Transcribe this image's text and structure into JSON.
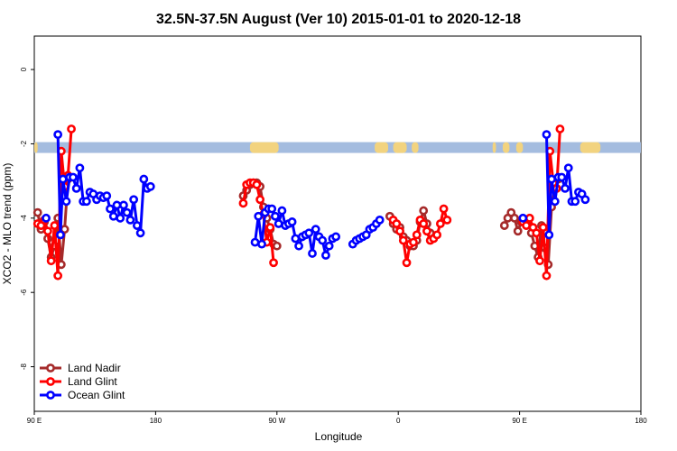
{
  "chart_data": {
    "type": "line",
    "title": "32.5N-37.5N August (Ver 10)   2015-01-01 to 2020-12-18",
    "xlabel": "Longitude",
    "ylabel": "XCO2 - MLO trend (ppm)",
    "xlim": [
      90,
      450
    ],
    "ylim": [
      -9.2,
      0.9
    ],
    "x_ticks": [
      {
        "value": 90,
        "label": "90 E"
      },
      {
        "value": 162,
        "label": "180"
      },
      {
        "value": 234,
        "label": "90 W"
      },
      {
        "value": 306,
        "label": "0"
      },
      {
        "value": 378,
        "label": "90 E"
      },
      {
        "value": 450,
        "label": "180"
      }
    ],
    "y_ticks": [
      {
        "value": 0,
        "label": "0"
      },
      {
        "value": -2,
        "label": "-2"
      },
      {
        "value": -4,
        "label": "-4"
      },
      {
        "value": -6,
        "label": "-6"
      },
      {
        "value": -8,
        "label": "-8"
      }
    ],
    "grid": false,
    "legend_position": "bottom-left",
    "land_band": {
      "y_center": -2.1,
      "ocean_color": "#a4bcdf",
      "land_color": "#f2d37f",
      "land_ranges": [
        [
          90,
          92
        ],
        [
          218,
          235
        ],
        [
          292,
          300
        ],
        [
          303,
          311
        ],
        [
          314,
          318
        ],
        [
          362,
          364
        ],
        [
          368,
          372
        ],
        [
          376,
          380
        ],
        [
          414,
          426
        ]
      ]
    },
    "series": [
      {
        "name": "Land Nadir",
        "color": "#a52a2a",
        "segments": [
          [
            [
              92,
              -3.85
            ],
            [
              94,
              -4.3
            ],
            [
              96,
              -4.1
            ],
            [
              98,
              -4.55
            ],
            [
              100,
              -5.05
            ],
            [
              102,
              -4.75
            ],
            [
              104,
              -4.0
            ],
            [
              106,
              -5.25
            ],
            [
              108,
              -4.3
            ],
            [
              110,
              -2.95
            ]
          ],
          [
            [
              214,
              -3.4
            ],
            [
              216,
              -3.25
            ],
            [
              218,
              -3.1
            ],
            [
              220,
              -3.05
            ],
            [
              222,
              -3.05
            ],
            [
              224,
              -3.15
            ],
            [
              226,
              -3.7
            ],
            [
              228,
              -4.0
            ],
            [
              230,
              -4.3
            ],
            [
              232,
              -4.7
            ],
            [
              234,
              -4.75
            ]
          ],
          [
            [
              301,
              -3.95
            ],
            [
              303,
              -4.15
            ],
            [
              305,
              -4.3
            ],
            [
              307,
              -4.25
            ],
            [
              309,
              -4.5
            ],
            [
              311,
              -4.6
            ],
            [
              313,
              -4.75
            ],
            [
              315,
              -4.75
            ],
            [
              317,
              -4.6
            ],
            [
              319,
              -4.1
            ],
            [
              321,
              -3.8
            ],
            [
              323,
              -4.15
            ],
            [
              325,
              -4.4
            ]
          ],
          [
            [
              369,
              -4.2
            ],
            [
              371,
              -4.0
            ],
            [
              373,
              -3.85
            ],
            [
              375,
              -4.0
            ],
            [
              377,
              -4.35
            ],
            [
              379,
              -4.1
            ],
            [
              381,
              -4.05
            ],
            [
              383,
              -4.05
            ],
            [
              385,
              -4.4
            ],
            [
              387,
              -4.75
            ],
            [
              389,
              -5.05
            ],
            [
              391,
              -4.2
            ],
            [
              393,
              -4.8
            ],
            [
              395,
              -5.25
            ],
            [
              397,
              -3.7
            ],
            [
              399,
              -3.2
            ],
            [
              401,
              -2.95
            ]
          ]
        ]
      },
      {
        "name": "Land Glint",
        "color": "#ff0000",
        "segments": [
          [
            [
              92,
              -4.15
            ],
            [
              94,
              -4.2
            ],
            [
              96,
              -4.05
            ],
            [
              98,
              -4.35
            ],
            [
              100,
              -5.15
            ],
            [
              102,
              -4.2
            ],
            [
              104,
              -5.55
            ],
            [
              106,
              -2.2
            ],
            [
              108,
              -3.15
            ],
            [
              110,
              -2.85
            ],
            [
              112,
              -1.6
            ]
          ],
          [
            [
              214,
              -3.6
            ],
            [
              216,
              -3.1
            ],
            [
              218,
              -3.05
            ],
            [
              220,
              -3.05
            ],
            [
              222,
              -3.1
            ],
            [
              224,
              -3.5
            ],
            [
              226,
              -3.9
            ],
            [
              228,
              -4.65
            ],
            [
              230,
              -4.25
            ],
            [
              232,
              -5.2
            ]
          ],
          [
            [
              303,
              -4.05
            ],
            [
              305,
              -4.15
            ],
            [
              307,
              -4.35
            ],
            [
              309,
              -4.6
            ],
            [
              311,
              -5.2
            ],
            [
              313,
              -4.7
            ],
            [
              315,
              -4.65
            ],
            [
              317,
              -4.45
            ],
            [
              319,
              -4.05
            ],
            [
              321,
              -4.15
            ],
            [
              323,
              -4.35
            ],
            [
              325,
              -4.6
            ],
            [
              327,
              -4.55
            ],
            [
              329,
              -4.45
            ],
            [
              331,
              -4.15
            ],
            [
              333,
              -3.75
            ],
            [
              335,
              -4.05
            ]
          ],
          [
            [
              380,
              -4.1
            ],
            [
              382,
              -4.2
            ],
            [
              384,
              -4.0
            ],
            [
              386,
              -4.25
            ],
            [
              388,
              -4.4
            ],
            [
              390,
              -5.15
            ],
            [
              392,
              -4.25
            ],
            [
              394,
              -5.55
            ],
            [
              396,
              -2.2
            ],
            [
              398,
              -3.05
            ],
            [
              400,
              -3.2
            ],
            [
              402,
              -1.6
            ]
          ]
        ]
      },
      {
        "name": "Ocean Glint",
        "color": "#0000ff",
        "segments": [
          [
            [
              97,
              -4.0
            ]
          ],
          [
            [
              104,
              -1.75
            ],
            [
              105.5,
              -4.45
            ],
            [
              107,
              -2.95
            ],
            [
              109,
              -3.55
            ],
            [
              111,
              -2.9
            ],
            [
              113,
              -2.9
            ],
            [
              115,
              -3.2
            ],
            [
              117,
              -2.65
            ],
            [
              119,
              -3.55
            ],
            [
              121,
              -3.55
            ],
            [
              123,
              -3.3
            ],
            [
              125,
              -3.35
            ],
            [
              127,
              -3.5
            ],
            [
              129,
              -3.4
            ],
            [
              131,
              -3.45
            ],
            [
              133,
              -3.4
            ],
            [
              135,
              -3.75
            ],
            [
              137,
              -3.95
            ],
            [
              139,
              -3.65
            ],
            [
              141,
              -4.0
            ],
            [
              143,
              -3.65
            ],
            [
              145,
              -3.85
            ],
            [
              147,
              -4.05
            ],
            [
              149,
              -3.5
            ],
            [
              151,
              -4.2
            ],
            [
              153,
              -4.4
            ],
            [
              155,
              -2.95
            ],
            [
              157,
              -3.2
            ],
            [
              159,
              -3.15
            ]
          ],
          [
            [
              221,
              -4.65
            ],
            [
              223,
              -3.95
            ],
            [
              225,
              -4.7
            ],
            [
              227,
              -3.85
            ],
            [
              229,
              -3.75
            ],
            [
              231,
              -3.75
            ],
            [
              233,
              -3.95
            ],
            [
              235,
              -4.15
            ],
            [
              237,
              -3.8
            ],
            [
              239,
              -4.2
            ],
            [
              241,
              -4.15
            ],
            [
              243,
              -4.1
            ],
            [
              245,
              -4.55
            ],
            [
              247,
              -4.75
            ],
            [
              249,
              -4.5
            ],
            [
              251,
              -4.45
            ],
            [
              253,
              -4.4
            ],
            [
              255,
              -4.95
            ],
            [
              257,
              -4.3
            ],
            [
              259,
              -4.5
            ],
            [
              261,
              -4.6
            ],
            [
              263,
              -5.0
            ],
            [
              265,
              -4.75
            ],
            [
              267,
              -4.55
            ],
            [
              269,
              -4.5
            ]
          ],
          [
            [
              279,
              -4.7
            ],
            [
              281,
              -4.6
            ],
            [
              283,
              -4.55
            ],
            [
              285,
              -4.5
            ],
            [
              287,
              -4.45
            ],
            [
              289,
              -4.3
            ],
            [
              291,
              -4.25
            ],
            [
              293,
              -4.15
            ],
            [
              295,
              -4.05
            ]
          ],
          [
            [
              380,
              -4.0
            ]
          ],
          [
            [
              394,
              -1.75
            ],
            [
              395.5,
              -4.45
            ],
            [
              397,
              -2.95
            ],
            [
              399,
              -3.55
            ],
            [
              401,
              -2.9
            ],
            [
              403,
              -2.9
            ],
            [
              405,
              -3.2
            ],
            [
              407,
              -2.65
            ],
            [
              409,
              -3.55
            ],
            [
              411,
              -3.55
            ],
            [
              413,
              -3.3
            ],
            [
              415,
              -3.35
            ],
            [
              417,
              -3.5
            ]
          ]
        ]
      }
    ]
  }
}
